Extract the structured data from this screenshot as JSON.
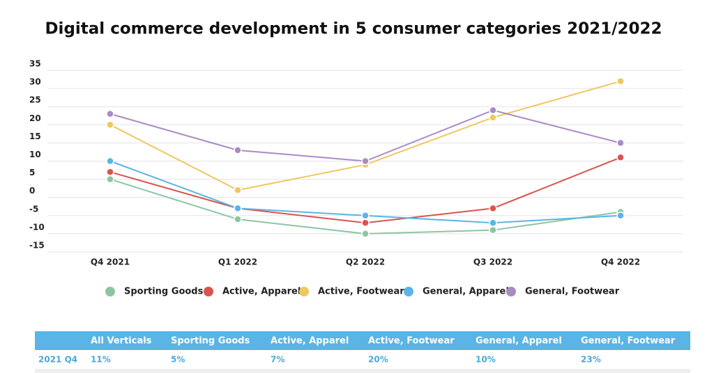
{
  "chart_data": {
    "type": "line",
    "title": "Digital commerce development in 5 consumer categories 2021/2022",
    "categories": [
      "Q4 2021",
      "Q1 2022",
      "Q2 2022",
      "Q3 2022",
      "Q4 2022"
    ],
    "series": [
      {
        "name": "Sporting Goods",
        "color": "#8dc5a3",
        "values": [
          5,
          -6,
          -10,
          -9,
          -4
        ]
      },
      {
        "name": "Active, Apparel",
        "color": "#d9534f",
        "values": [
          7,
          -3,
          -7,
          -3,
          11
        ]
      },
      {
        "name": "Active, Footwear",
        "color": "#f0c75e",
        "values": [
          20,
          2,
          9,
          22,
          32
        ]
      },
      {
        "name": "General, Apparel",
        "color": "#5ab4e5",
        "values": [
          10,
          -3,
          -5,
          -7,
          -5
        ]
      },
      {
        "name": "General, Footwear",
        "color": "#a98bc6",
        "values": [
          23,
          13,
          10,
          24,
          15
        ]
      }
    ],
    "ylim": [
      -15,
      35
    ],
    "yticks": [
      -15,
      -10,
      -5,
      0,
      5,
      10,
      15,
      20,
      25,
      30,
      35
    ],
    "grid": true,
    "legend": "bottom"
  },
  "table": {
    "columns": [
      "All Verticals",
      "Sporting Goods",
      "Active, Apparel",
      "Active, Footwear",
      "General, Apparel",
      "General, Footwear"
    ],
    "rows": [
      {
        "label": "2021 Q4",
        "cells": [
          "11%",
          "5%",
          "7%",
          "20%",
          "10%",
          "23%"
        ]
      }
    ]
  }
}
